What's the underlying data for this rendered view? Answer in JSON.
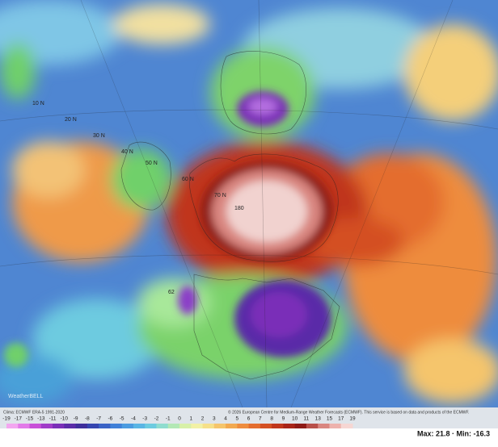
{
  "map": {
    "labels": [
      "10 N",
      "20 N",
      "30 N",
      "40 N",
      "50 N",
      "60 N",
      "70 N",
      "180",
      "62"
    ]
  },
  "legend": {
    "ticks": [
      -19,
      -17,
      -15,
      -13,
      -11,
      -10,
      -9,
      -8,
      -7,
      -6,
      -5,
      -4,
      -3,
      -2,
      -1,
      0,
      1,
      2,
      3,
      4,
      5,
      6,
      7,
      8,
      9,
      10,
      11,
      13,
      15,
      17,
      19
    ],
    "colors": [
      "#f3a6f0",
      "#e27ae8",
      "#c84fd8",
      "#a03cc8",
      "#7a2fb8",
      "#5a2ca8",
      "#3e2f9c",
      "#3545b0",
      "#3a63c6",
      "#3f80d8",
      "#4b9be0",
      "#5ab5e4",
      "#6dcbe0",
      "#8fdccf",
      "#b3e8b5",
      "#d7f0a8",
      "#f2f1a6",
      "#f6e08a",
      "#f5c56c",
      "#f2a950",
      "#ee8c3e",
      "#e46d2e",
      "#d44f22",
      "#c0361c",
      "#a82418",
      "#8e1a16",
      "#b8504a",
      "#d98680",
      "#edb2ad",
      "#f6d6d3"
    ],
    "source": "Clima: ECMWF ERA-5 1991-2020",
    "copyright": "© 2026 European Centre for Medium-Range Weather Forecasts (ECMWF). This service is based on data and products of the ECMWF.",
    "maxmin": "Max: 21.8 · Min: -16.3"
  }
}
